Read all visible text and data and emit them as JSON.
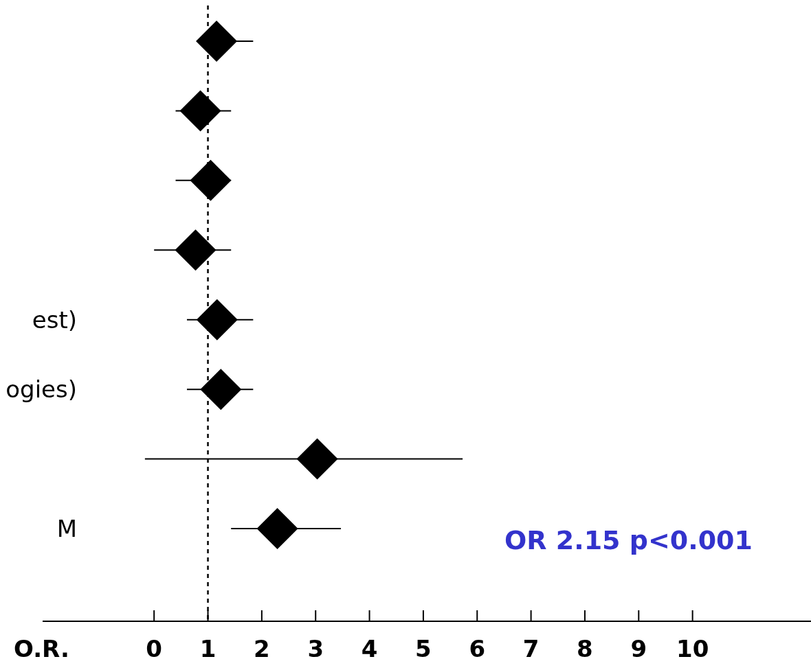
{
  "chart_data": {
    "type": "scatter",
    "orientation": "horizontal",
    "marker": "diamond",
    "xlabel": "O.R.",
    "categories": [
      null,
      null,
      null,
      null,
      "est)",
      "ogies)",
      null,
      "M"
    ],
    "values": [
      1.16,
      0.86,
      1.05,
      0.77,
      1.17,
      1.24,
      3.03,
      2.29
    ],
    "errors": [
      [
        0.82,
        1.84
      ],
      [
        0.4,
        1.43
      ],
      [
        0.4,
        1.43
      ],
      [
        0.0,
        1.43
      ],
      [
        0.61,
        1.84
      ],
      [
        0.61,
        1.84
      ],
      [
        -0.17,
        5.73
      ],
      [
        1.43,
        3.47
      ]
    ],
    "color": "#000000",
    "xlim": [
      -2.07,
      12.2
    ],
    "xticks": [
      0,
      1,
      2,
      3,
      4,
      5,
      6,
      7,
      8,
      9,
      10
    ],
    "ref_lines": [
      {
        "axis": "x",
        "value": 1,
        "line_style": "dashed",
        "color": "#000000"
      }
    ],
    "annotations": [
      "OR 2.15 p<0.001"
    ]
  }
}
